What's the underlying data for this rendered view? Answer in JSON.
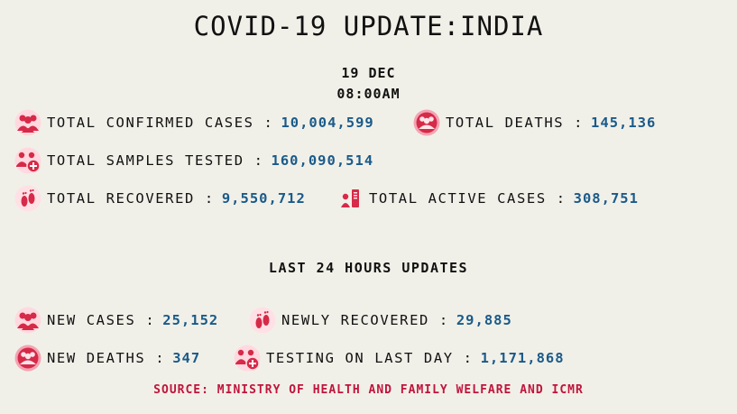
{
  "title": "COVID-19 UPDATE:INDIA",
  "date": "19 DEC",
  "time": "08:00AM",
  "stats": {
    "total_confirmed": {
      "label": "TOTAL CONFIRMED CASES :",
      "value": "10,004,599",
      "icon": "people-group-icon"
    },
    "total_deaths": {
      "label": "TOTAL DEATHS :",
      "value": "145,136",
      "icon": "people-deaths-icon"
    },
    "total_samples": {
      "label": "TOTAL SAMPLES TESTED :",
      "value": "160,090,514",
      "icon": "people-testing-icon"
    },
    "total_recovered": {
      "label": "TOTAL RECOVERED :",
      "value": "9,550,712",
      "icon": "footprints-icon"
    },
    "total_active": {
      "label": "TOTAL ACTIVE CASES :",
      "value": "308,751",
      "icon": "active-cases-icon"
    }
  },
  "last24_heading": "LAST 24 HOURS UPDATES",
  "last24": {
    "new_cases": {
      "label": "NEW CASES :",
      "value": "25,152",
      "icon": "people-group-icon"
    },
    "newly_recovered": {
      "label": "NEWLY RECOVERED :",
      "value": "29,885",
      "icon": "footprints-icon"
    },
    "new_deaths": {
      "label": "NEW DEATHS :",
      "value": "347",
      "icon": "people-deaths-icon"
    },
    "testing_last_day": {
      "label": "TESTING ON LAST DAY :",
      "value": "1,171,868",
      "icon": "people-testing-icon"
    }
  },
  "source": "SOURCE: MINISTRY OF HEALTH AND FAMILY WELFARE AND ICMR",
  "colors": {
    "background": "#f1f0e8",
    "value_blue": "#1a5a8a",
    "icon_red": "#d62a48",
    "source_red": "#c0143c"
  }
}
